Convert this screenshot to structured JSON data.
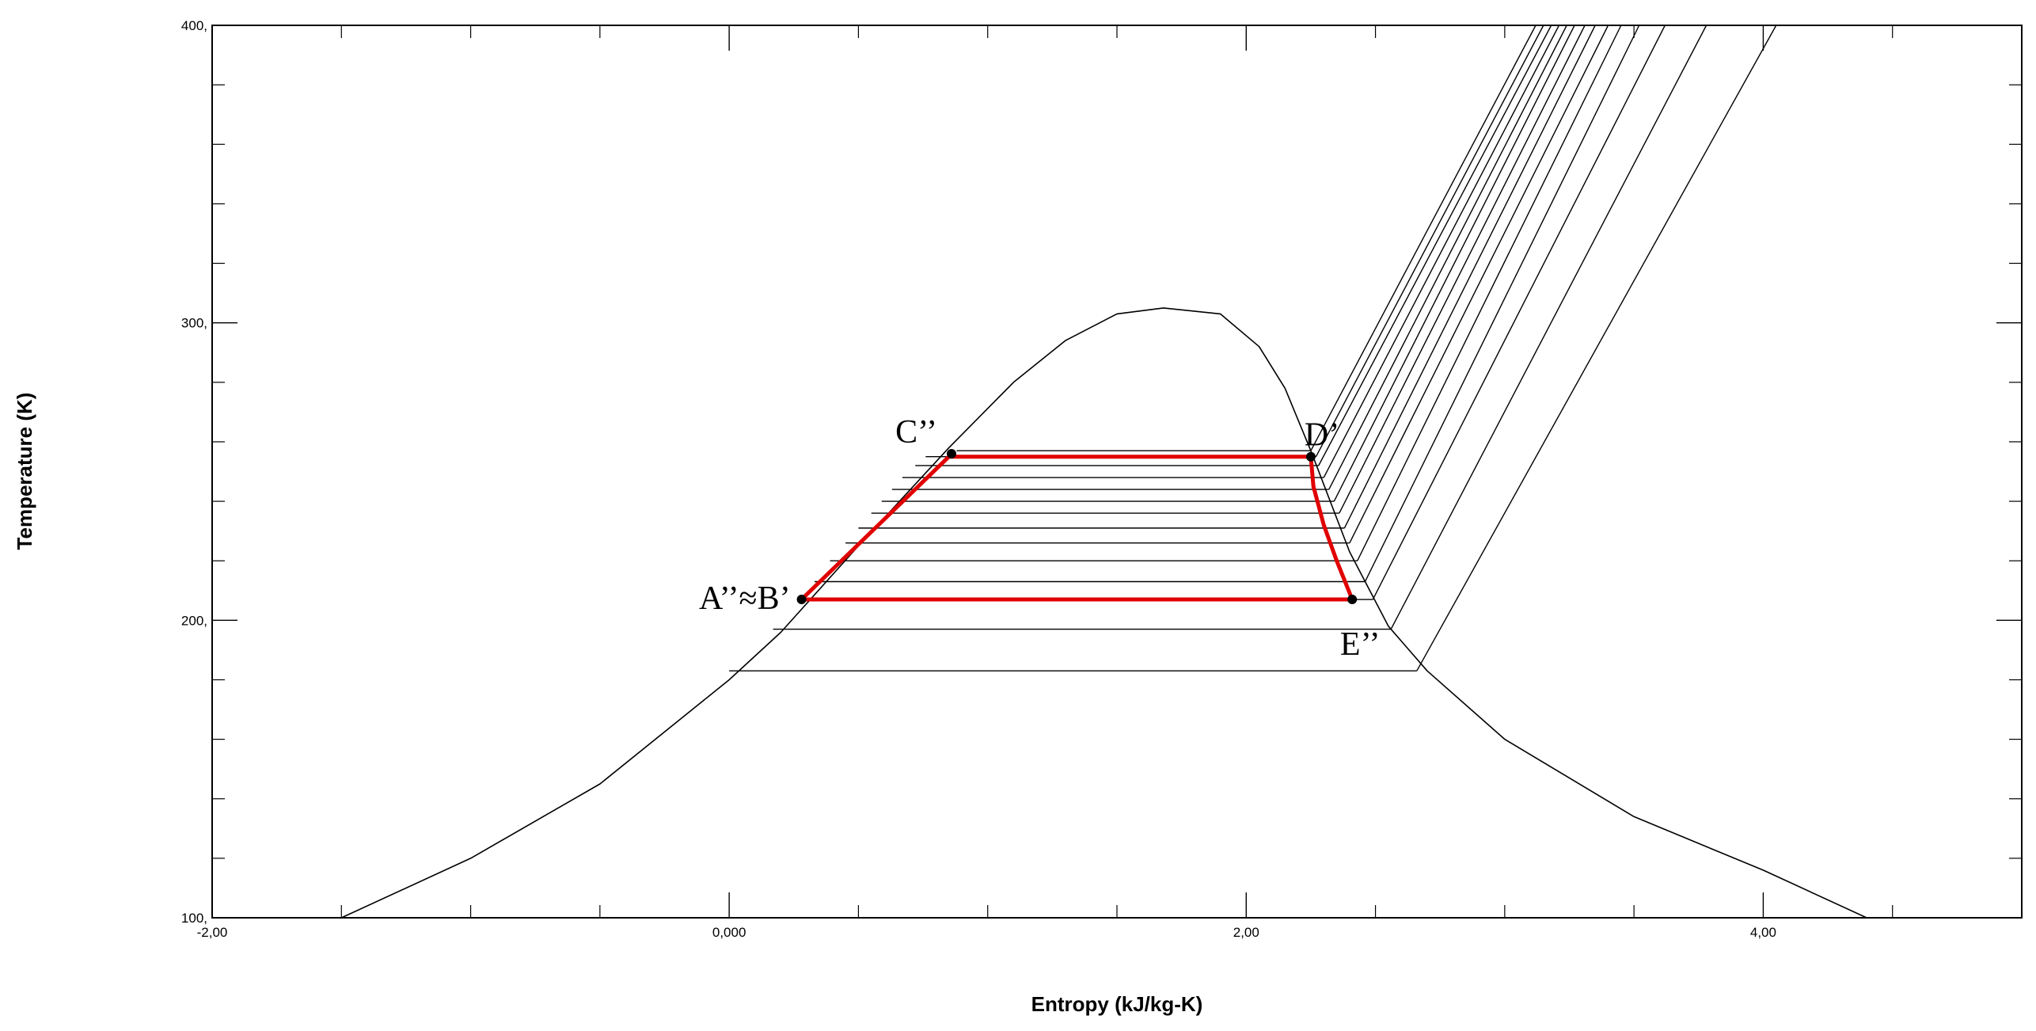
{
  "chart_data": {
    "type": "line",
    "title": "",
    "xlabel": "Entropy (kJ/kg-K)",
    "ylabel": "Temperature (K)",
    "xlim": [
      -2.0,
      5.0
    ],
    "ylim": [
      100,
      400
    ],
    "x_ticks": [
      -2.0,
      0.0,
      2.0,
      4.0
    ],
    "x_tick_labels": [
      "-2,00",
      "0,000",
      "2,00",
      "4,00"
    ],
    "x_minor_ticks": [
      -1.5,
      -1.0,
      -0.5,
      0.5,
      1.0,
      1.5,
      2.5,
      3.0,
      3.5,
      4.5
    ],
    "y_ticks": [
      100,
      200,
      300,
      400
    ],
    "y_tick_labels": [
      "100,",
      "200,",
      "300,",
      "400,"
    ],
    "y_minor_ticks": [
      120,
      140,
      160,
      180,
      220,
      240,
      260,
      280,
      320,
      340,
      360,
      380
    ],
    "grid": false,
    "colors": {
      "saturation": "#000000",
      "isobar": "#000000",
      "cycle": "#e00000",
      "point": "#000000"
    },
    "series": [
      {
        "role": "saturation-dome",
        "x": [
          -1.5,
          -1.0,
          -0.5,
          0.0,
          0.2,
          0.5,
          0.85,
          1.1,
          1.3,
          1.5,
          1.68,
          1.9,
          2.05,
          2.15,
          2.25,
          2.4,
          2.55,
          2.7,
          3.0,
          3.5,
          4.0,
          4.4
        ],
        "y": [
          100,
          120,
          145,
          180,
          196,
          225,
          258,
          280,
          294,
          303,
          305,
          303,
          292,
          278,
          257,
          223,
          198,
          183,
          160,
          134,
          116,
          100
        ]
      },
      {
        "role": "isobars",
        "lines": [
          {
            "y": 183,
            "x_left": 0.0,
            "x_right": 2.66,
            "x_top": 4.05
          },
          {
            "y": 197,
            "x_left": 0.17,
            "x_right": 2.56,
            "x_top": 3.78
          },
          {
            "y": 207,
            "x_left": 0.27,
            "x_right": 2.49,
            "x_top": 3.62
          },
          {
            "y": 213,
            "x_left": 0.33,
            "x_right": 2.46,
            "x_top": 3.52
          },
          {
            "y": 220,
            "x_left": 0.39,
            "x_right": 2.43,
            "x_top": 3.45
          },
          {
            "y": 226,
            "x_left": 0.45,
            "x_right": 2.4,
            "x_top": 3.4
          },
          {
            "y": 231,
            "x_left": 0.5,
            "x_right": 2.38,
            "x_top": 3.35
          },
          {
            "y": 236,
            "x_left": 0.55,
            "x_right": 2.36,
            "x_top": 3.31
          },
          {
            "y": 240,
            "x_left": 0.59,
            "x_right": 2.34,
            "x_top": 3.27
          },
          {
            "y": 244,
            "x_left": 0.63,
            "x_right": 2.32,
            "x_top": 3.24
          },
          {
            "y": 248,
            "x_left": 0.67,
            "x_right": 2.3,
            "x_top": 3.21
          },
          {
            "y": 252,
            "x_left": 0.72,
            "x_right": 2.28,
            "x_top": 3.18
          },
          {
            "y": 255,
            "x_left": 0.76,
            "x_right": 2.27,
            "x_top": 3.15
          },
          {
            "y": 257,
            "x_left": 0.88,
            "x_right": 2.25,
            "x_top": 3.12
          }
        ]
      },
      {
        "role": "cycle",
        "x": [
          0.28,
          0.85,
          2.25,
          2.26,
          2.3,
          2.35,
          2.41,
          0.28
        ],
        "y": [
          207,
          255,
          255,
          245,
          232,
          220,
          207,
          207
        ]
      }
    ],
    "annotations": [
      {
        "label": "C’’",
        "x": 0.86,
        "y": 256
      },
      {
        "label": "D’",
        "x": 2.25,
        "y": 255
      },
      {
        "label": "A’’≈B’",
        "x": 0.28,
        "y": 207
      },
      {
        "label": "E’’",
        "x": 2.41,
        "y": 207
      }
    ]
  }
}
